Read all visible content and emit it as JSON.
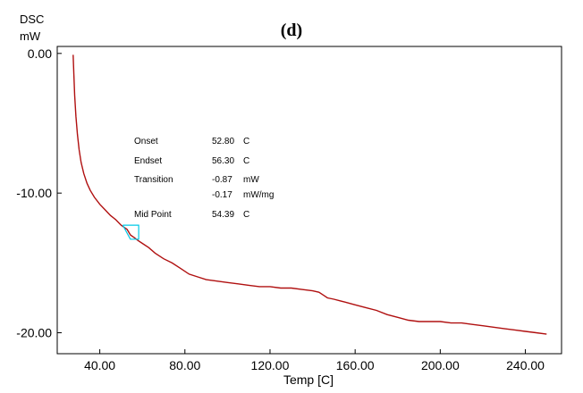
{
  "chart_data": {
    "type": "line",
    "title": "(d)",
    "ylabel_line1": "DSC",
    "ylabel_line2": "mW",
    "xlabel": "Temp  [C]",
    "xlim": [
      20,
      257
    ],
    "ylim": [
      -21.5,
      0.5
    ],
    "x_ticks": [
      "40.00",
      "80.00",
      "120.00",
      "160.00",
      "200.00",
      "240.00"
    ],
    "x_tick_values": [
      40,
      80,
      120,
      160,
      200,
      240
    ],
    "y_ticks": [
      "0.00",
      "-10.00",
      "-20.00"
    ],
    "y_tick_values": [
      0,
      -10,
      -20
    ],
    "grid": false,
    "line_color": "#b01010",
    "marker_color": "#00c8e6",
    "series": [
      {
        "x": [
          27.5,
          27.8,
          28.2,
          28.8,
          29.5,
          30.3,
          31.2,
          32.5,
          34,
          35.5,
          37.5,
          40,
          42.5,
          45,
          47.5,
          50,
          52.8,
          54.4,
          56.3,
          58,
          60,
          63,
          66,
          70,
          74,
          78,
          82,
          86,
          90,
          95,
          100,
          105,
          110,
          115,
          120,
          125,
          130,
          135,
          140,
          143,
          145,
          147,
          150,
          155,
          160,
          165,
          170,
          175,
          180,
          185,
          190,
          195,
          200,
          205,
          210,
          215,
          220,
          225,
          230,
          235,
          240,
          245,
          250
        ],
        "y": [
          -0.1,
          -1.5,
          -3.0,
          -4.5,
          -5.8,
          -6.9,
          -7.8,
          -8.6,
          -9.3,
          -9.8,
          -10.3,
          -10.8,
          -11.2,
          -11.6,
          -11.9,
          -12.3,
          -12.6,
          -13.0,
          -13.2,
          -13.4,
          -13.6,
          -13.9,
          -14.3,
          -14.7,
          -15.0,
          -15.4,
          -15.8,
          -16.0,
          -16.2,
          -16.3,
          -16.4,
          -16.5,
          -16.6,
          -16.7,
          -16.7,
          -16.8,
          -16.8,
          -16.9,
          -17.0,
          -17.1,
          -17.3,
          -17.5,
          -17.6,
          -17.8,
          -18.0,
          -18.2,
          -18.4,
          -18.7,
          -18.9,
          -19.1,
          -19.2,
          -19.2,
          -19.2,
          -19.3,
          -19.3,
          -19.4,
          -19.5,
          -19.6,
          -19.7,
          -19.8,
          -19.9,
          -20.0,
          -20.1
        ]
      }
    ],
    "annotation": {
      "onset_label": "Onset",
      "onset_value": "52.80",
      "onset_unit": "C",
      "endset_label": "Endset",
      "endset_value": "56.30",
      "endset_unit": "C",
      "transition_label": "Transition",
      "transition_value1": "-0.87",
      "transition_unit1": "mW",
      "transition_value2": "-0.17",
      "transition_unit2": "mW/mg",
      "midpoint_label": "Mid Point",
      "midpoint_value": "54.39",
      "midpoint_unit": "C",
      "onset_x": 52.8,
      "endset_x": 56.3,
      "midpoint_x": 54.39
    }
  }
}
